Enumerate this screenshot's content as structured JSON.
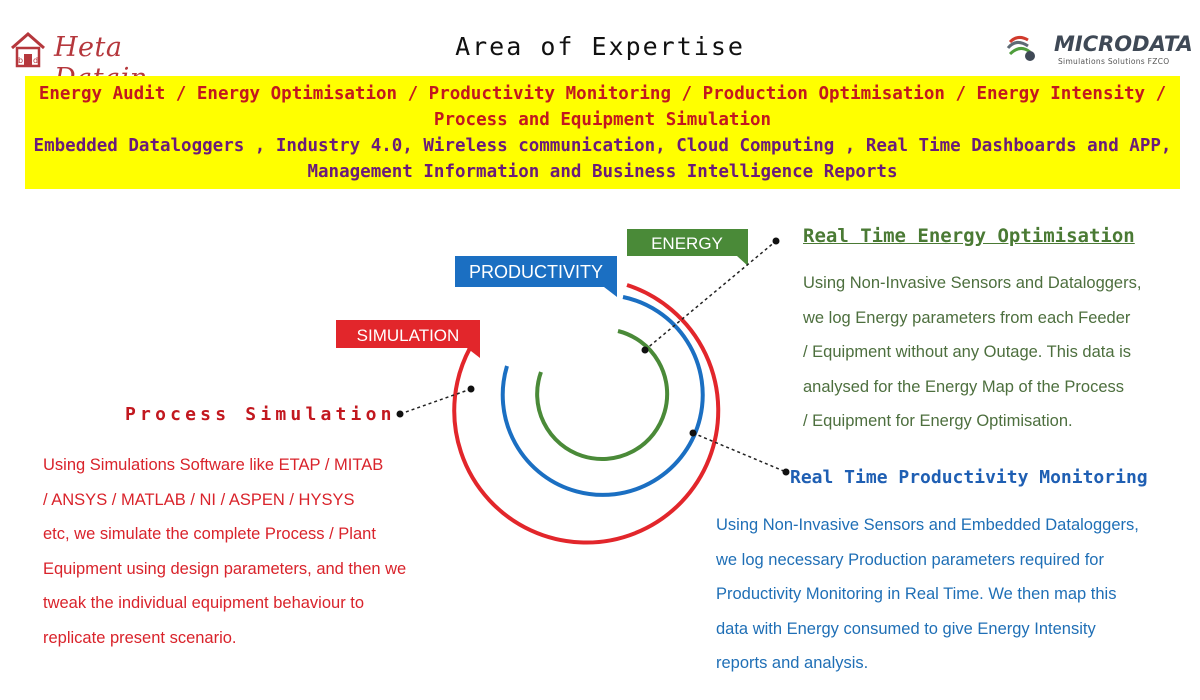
{
  "header": {
    "brand_left": "Heta Datain",
    "title": "Area of Expertise",
    "brand_right": "MICRODATA",
    "brand_right_tagline": "Simulations Solutions FZCO"
  },
  "banner": {
    "line1": "Energy Audit / Energy Optimisation / Productivity Monitoring / Production Optimisation / Energy Intensity /",
    "line2": "Process and Equipment Simulation",
    "line3": "Embedded Dataloggers , Industry 4.0, Wireless communication, Cloud Computing , Real Time Dashboards and APP,",
    "line4": "Management Information and Business Intelligence Reports",
    "color": "#ffff00"
  },
  "diagram": {
    "labels": {
      "energy": "ENERGY",
      "productivity": "PRODUCTIVITY",
      "simulation": "SIMULATION"
    },
    "colors": {
      "energy": "#4a8a38",
      "productivity": "#1b6fc2",
      "simulation": "#e2262b"
    }
  },
  "sections": {
    "energy": {
      "heading": "Real Time Energy Optimisation",
      "lines": [
        "Using Non-Invasive Sensors and Dataloggers,",
        "we log Energy parameters from each Feeder",
        "/ Equipment without any Outage. This data is",
        "analysed for the Energy Map of the Process",
        "/ Equipment for Energy Optimisation."
      ]
    },
    "process": {
      "heading": "Process Simulation",
      "lines": [
        "Using Simulations Software like ETAP / MITAB",
        "/ ANSYS / MATLAB / NI / ASPEN / HYSYS",
        "etc, we simulate the complete Process / Plant",
        "Equipment using design parameters, and then we",
        "tweak the individual equipment behaviour to",
        "replicate present scenario."
      ]
    },
    "productivity": {
      "heading": "Real Time Productivity Monitoring",
      "lines": [
        "Using Non-Invasive Sensors and Embedded Dataloggers,",
        "we log necessary Production parameters required for",
        "Productivity Monitoring in Real Time. We then map this",
        "data with Energy consumed to give Energy Intensity",
        "reports and analysis."
      ]
    }
  }
}
